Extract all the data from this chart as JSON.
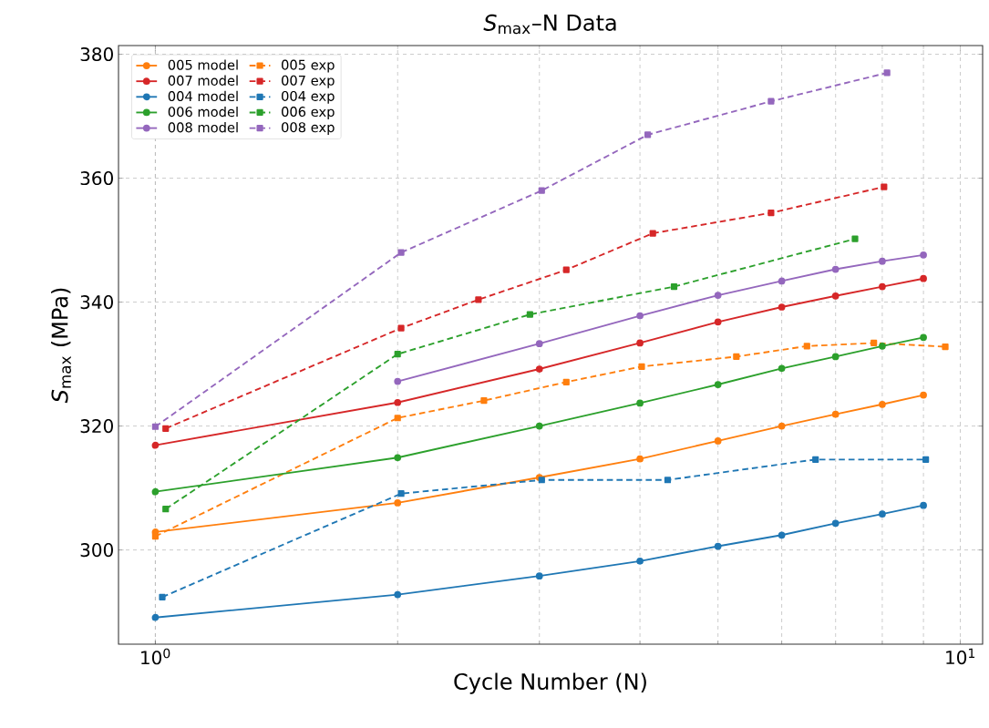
{
  "chart_data": {
    "type": "line",
    "title": "*S*$_{max}$–N Data",
    "xlabel": "Cycle Number (N)",
    "ylabel": "*S*$_{max}$ (MPa)",
    "log": "x",
    "xlim": [
      0.9,
      10.66
    ],
    "ylim": [
      284.8,
      381.4
    ],
    "xticks": [
      {
        "value": 1,
        "label": "10$^{0}$"
      },
      {
        "value": 10,
        "label": "10$^{1}$"
      }
    ],
    "yticks": [
      300,
      320,
      340,
      360,
      380
    ],
    "grid": true,
    "legend": "top left",
    "x": [
      1,
      2,
      3,
      4,
      5,
      6,
      7,
      8,
      9
    ],
    "series": [
      {
        "name": "005 model",
        "color": "#ff7f0e",
        "marker": "circle",
        "line_style": "solid",
        "values": [
          302.9,
          307.6,
          311.7,
          314.7,
          317.6,
          320.0,
          321.9,
          323.5,
          325.0
        ]
      },
      {
        "name": "005 exp",
        "color": "#ff7f0e",
        "marker": "square",
        "line_style": "dashed",
        "x": [
          1.0,
          2.0,
          2.56,
          3.24,
          4.02,
          5.27,
          6.45,
          7.81,
          9.58
        ],
        "values": [
          302.2,
          321.3,
          324.1,
          327.1,
          329.6,
          331.2,
          332.9,
          333.4,
          332.8
        ]
      },
      {
        "name": "007 model",
        "color": "#d62728",
        "marker": "circle",
        "line_style": "solid",
        "values": [
          316.9,
          323.8,
          329.2,
          333.4,
          336.8,
          339.2,
          341.0,
          342.5,
          343.8
        ]
      },
      {
        "name": "007 exp",
        "color": "#d62728",
        "marker": "square",
        "line_style": "dashed",
        "x": [
          1.03,
          2.02,
          2.52,
          3.24,
          4.15,
          5.82,
          8.04
        ],
        "values": [
          319.6,
          335.8,
          340.4,
          345.2,
          351.1,
          354.4,
          358.6
        ]
      },
      {
        "name": "004 model",
        "color": "#1f77b4",
        "marker": "circle",
        "line_style": "solid",
        "values": [
          289.1,
          292.8,
          295.8,
          298.2,
          300.6,
          302.4,
          304.3,
          305.8,
          307.2
        ]
      },
      {
        "name": "004 exp",
        "color": "#1f77b4",
        "marker": "square",
        "line_style": "dashed",
        "x": [
          1.02,
          2.02,
          3.02,
          4.33,
          6.61,
          9.06
        ],
        "values": [
          292.4,
          309.1,
          311.3,
          311.3,
          314.6,
          314.6
        ]
      },
      {
        "name": "006 model",
        "color": "#2ca02c",
        "marker": "circle",
        "line_style": "solid",
        "values": [
          309.4,
          314.9,
          320.0,
          323.7,
          326.7,
          329.3,
          331.2,
          332.9,
          334.3
        ]
      },
      {
        "name": "006 exp",
        "color": "#2ca02c",
        "marker": "square",
        "line_style": "dashed",
        "x": [
          1.03,
          2.0,
          2.92,
          4.41,
          7.4
        ],
        "values": [
          306.6,
          331.6,
          338.0,
          342.5,
          350.2
        ]
      },
      {
        "name": "008 model",
        "color": "#9467bd",
        "marker": "circle",
        "line_style": "solid",
        "values": [
          null,
          327.2,
          333.3,
          337.8,
          341.1,
          343.4,
          345.3,
          346.6,
          347.6
        ]
      },
      {
        "name": "008 exp",
        "color": "#9467bd",
        "marker": "square",
        "line_style": "dashed",
        "x": [
          1.0,
          2.02,
          3.02,
          4.09,
          5.82,
          8.11
        ],
        "values": [
          319.9,
          348.0,
          358.0,
          367.0,
          372.4,
          377.0
        ]
      }
    ]
  }
}
